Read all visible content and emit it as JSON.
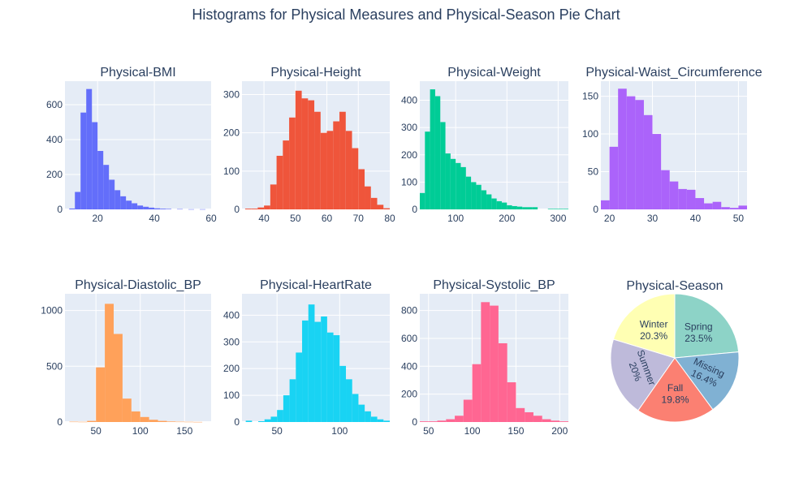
{
  "figure": {
    "title": "Histograms for Physical Measures and Physical-Season Pie Chart"
  },
  "chart_data": [
    {
      "type": "bar",
      "title": "Physical-BMI",
      "color": "#636efa",
      "bins": [
        [
          10,
          12,
          5
        ],
        [
          12,
          14,
          100
        ],
        [
          14,
          16,
          555
        ],
        [
          16,
          18,
          690
        ],
        [
          18,
          20,
          500
        ],
        [
          20,
          22,
          335
        ],
        [
          22,
          24,
          255
        ],
        [
          24,
          26,
          170
        ],
        [
          26,
          28,
          110
        ],
        [
          28,
          30,
          75
        ],
        [
          30,
          32,
          50
        ],
        [
          32,
          34,
          35
        ],
        [
          34,
          36,
          22
        ],
        [
          36,
          38,
          15
        ],
        [
          38,
          40,
          10
        ],
        [
          40,
          42,
          6
        ],
        [
          42,
          44,
          4
        ],
        [
          44,
          46,
          3
        ],
        [
          48,
          50,
          2
        ],
        [
          52,
          54,
          1
        ],
        [
          56,
          58,
          1
        ]
      ],
      "xlim": [
        8.5,
        60
      ],
      "ylim": [
        0,
        735
      ],
      "xticks": [
        20,
        40,
        60
      ],
      "yticks": [
        0,
        200,
        400,
        600
      ]
    },
    {
      "type": "bar",
      "title": "Physical-Height",
      "color": "#ef553b",
      "bins": [
        [
          34,
          36,
          2
        ],
        [
          36,
          38,
          2
        ],
        [
          38,
          40,
          5
        ],
        [
          40,
          42,
          10
        ],
        [
          42,
          44,
          65
        ],
        [
          44,
          46,
          140
        ],
        [
          46,
          48,
          180
        ],
        [
          48,
          50,
          240
        ],
        [
          50,
          52,
          310
        ],
        [
          52,
          54,
          290
        ],
        [
          54,
          56,
          285
        ],
        [
          56,
          58,
          255
        ],
        [
          58,
          60,
          200
        ],
        [
          60,
          62,
          205
        ],
        [
          62,
          64,
          230
        ],
        [
          64,
          66,
          255
        ],
        [
          66,
          68,
          205
        ],
        [
          68,
          70,
          160
        ],
        [
          70,
          72,
          105
        ],
        [
          72,
          74,
          60
        ],
        [
          74,
          76,
          30
        ],
        [
          76,
          78,
          12
        ],
        [
          78,
          80,
          3
        ]
      ],
      "xlim": [
        33,
        80
      ],
      "ylim": [
        0,
        335
      ],
      "xticks": [
        40,
        50,
        60,
        70,
        80
      ],
      "yticks": [
        0,
        100,
        200,
        300
      ]
    },
    {
      "type": "bar",
      "title": "Physical-Weight",
      "color": "#00cc96",
      "bins": [
        [
          30,
          40,
          60
        ],
        [
          40,
          50,
          285
        ],
        [
          50,
          60,
          440
        ],
        [
          60,
          70,
          415
        ],
        [
          70,
          80,
          320
        ],
        [
          80,
          90,
          205
        ],
        [
          90,
          100,
          185
        ],
        [
          100,
          110,
          170
        ],
        [
          110,
          120,
          155
        ],
        [
          120,
          130,
          120
        ],
        [
          130,
          140,
          100
        ],
        [
          140,
          150,
          90
        ],
        [
          150,
          160,
          70
        ],
        [
          160,
          170,
          55
        ],
        [
          170,
          180,
          40
        ],
        [
          180,
          190,
          30
        ],
        [
          190,
          200,
          25
        ],
        [
          200,
          210,
          15
        ],
        [
          210,
          220,
          12
        ],
        [
          220,
          230,
          10
        ],
        [
          230,
          240,
          8
        ],
        [
          240,
          250,
          8
        ],
        [
          250,
          260,
          8
        ],
        [
          280,
          290,
          2
        ],
        [
          290,
          300,
          2
        ],
        [
          300,
          310,
          2
        ],
        [
          310,
          320,
          2
        ]
      ],
      "xlim": [
        30,
        320
      ],
      "ylim": [
        0,
        470
      ],
      "xticks": [
        100,
        200,
        300
      ],
      "yticks": [
        0,
        100,
        200,
        300,
        400
      ]
    },
    {
      "type": "bar",
      "title": "Physical-Waist_Circumference",
      "color": "#ab63fa",
      "bins": [
        [
          18,
          20,
          12
        ],
        [
          20,
          22,
          83
        ],
        [
          22,
          24,
          160
        ],
        [
          24,
          26,
          150
        ],
        [
          26,
          28,
          145
        ],
        [
          28,
          30,
          125
        ],
        [
          30,
          32,
          100
        ],
        [
          32,
          34,
          52
        ],
        [
          34,
          36,
          37
        ],
        [
          36,
          38,
          27
        ],
        [
          38,
          40,
          26
        ],
        [
          40,
          42,
          15
        ],
        [
          42,
          44,
          8
        ],
        [
          44,
          46,
          10
        ],
        [
          46,
          48,
          3
        ],
        [
          48,
          50,
          2
        ],
        [
          50,
          52,
          5
        ]
      ],
      "xlim": [
        18,
        52
      ],
      "ylim": [
        0,
        170
      ],
      "xticks": [
        20,
        30,
        40,
        50
      ],
      "yticks": [
        0,
        50,
        100,
        150
      ]
    },
    {
      "type": "bar",
      "title": "Physical-Diastolic_BP",
      "color": "#ffa15a",
      "bins": [
        [
          20,
          30,
          3
        ],
        [
          30,
          40,
          2
        ],
        [
          40,
          50,
          10
        ],
        [
          50,
          60,
          490
        ],
        [
          60,
          70,
          1060
        ],
        [
          70,
          80,
          790
        ],
        [
          80,
          90,
          210
        ],
        [
          90,
          100,
          95
        ],
        [
          100,
          110,
          45
        ],
        [
          110,
          120,
          20
        ],
        [
          120,
          130,
          10
        ],
        [
          130,
          140,
          5
        ],
        [
          140,
          150,
          3
        ],
        [
          150,
          160,
          2
        ],
        [
          160,
          170,
          1
        ]
      ],
      "xlim": [
        15,
        180
      ],
      "ylim": [
        0,
        1150
      ],
      "xticks": [
        50,
        100,
        150
      ],
      "yticks": [
        0,
        500,
        1000
      ]
    },
    {
      "type": "bar",
      "title": "Physical-HeartRate",
      "color": "#19d3f3",
      "bins": [
        [
          25,
          30,
          5
        ],
        [
          35,
          40,
          3
        ],
        [
          40,
          45,
          10
        ],
        [
          45,
          50,
          20
        ],
        [
          50,
          55,
          45
        ],
        [
          55,
          60,
          100
        ],
        [
          60,
          65,
          160
        ],
        [
          65,
          70,
          260
        ],
        [
          70,
          75,
          380
        ],
        [
          75,
          80,
          440
        ],
        [
          80,
          85,
          375
        ],
        [
          85,
          90,
          395
        ],
        [
          90,
          95,
          335
        ],
        [
          95,
          100,
          325
        ],
        [
          100,
          105,
          210
        ],
        [
          105,
          110,
          160
        ],
        [
          110,
          115,
          105
        ],
        [
          115,
          120,
          65
        ],
        [
          120,
          125,
          40
        ],
        [
          125,
          130,
          20
        ],
        [
          130,
          135,
          10
        ],
        [
          135,
          140,
          5
        ]
      ],
      "xlim": [
        22,
        140
      ],
      "ylim": [
        0,
        480
      ],
      "xticks": [
        50,
        100
      ],
      "yticks": [
        0,
        100,
        200,
        300,
        400
      ]
    },
    {
      "type": "bar",
      "title": "Physical-Systolic_BP",
      "color": "#ff6692",
      "bins": [
        [
          40,
          50,
          5
        ],
        [
          50,
          60,
          5
        ],
        [
          60,
          70,
          10
        ],
        [
          70,
          80,
          20
        ],
        [
          80,
          90,
          45
        ],
        [
          90,
          100,
          160
        ],
        [
          100,
          110,
          415
        ],
        [
          110,
          120,
          860
        ],
        [
          120,
          130,
          835
        ],
        [
          130,
          140,
          565
        ],
        [
          140,
          150,
          285
        ],
        [
          150,
          160,
          100
        ],
        [
          160,
          170,
          70
        ],
        [
          170,
          180,
          45
        ],
        [
          180,
          190,
          20
        ],
        [
          190,
          200,
          10
        ],
        [
          200,
          210,
          5
        ]
      ],
      "xlim": [
        40,
        210
      ],
      "ylim": [
        0,
        920
      ],
      "xticks": [
        50,
        100,
        150,
        200
      ],
      "yticks": [
        0,
        200,
        400,
        600,
        800
      ]
    },
    {
      "type": "pie",
      "title": "Physical-Season",
      "slices": [
        {
          "label": "Spring",
          "value": 23.5,
          "text": "23.5%",
          "color": "#8dd3c7"
        },
        {
          "label": "Missing",
          "value": 16.4,
          "text": "16.4%",
          "color": "#80b1d3"
        },
        {
          "label": "Fall",
          "value": 19.8,
          "text": "19.8%",
          "color": "#fb8072"
        },
        {
          "label": "Summer",
          "value": 20.0,
          "text": "20%",
          "color": "#bebada"
        },
        {
          "label": "Winter",
          "value": 20.3,
          "text": "20.3%",
          "color": "#ffffb3"
        }
      ]
    }
  ]
}
